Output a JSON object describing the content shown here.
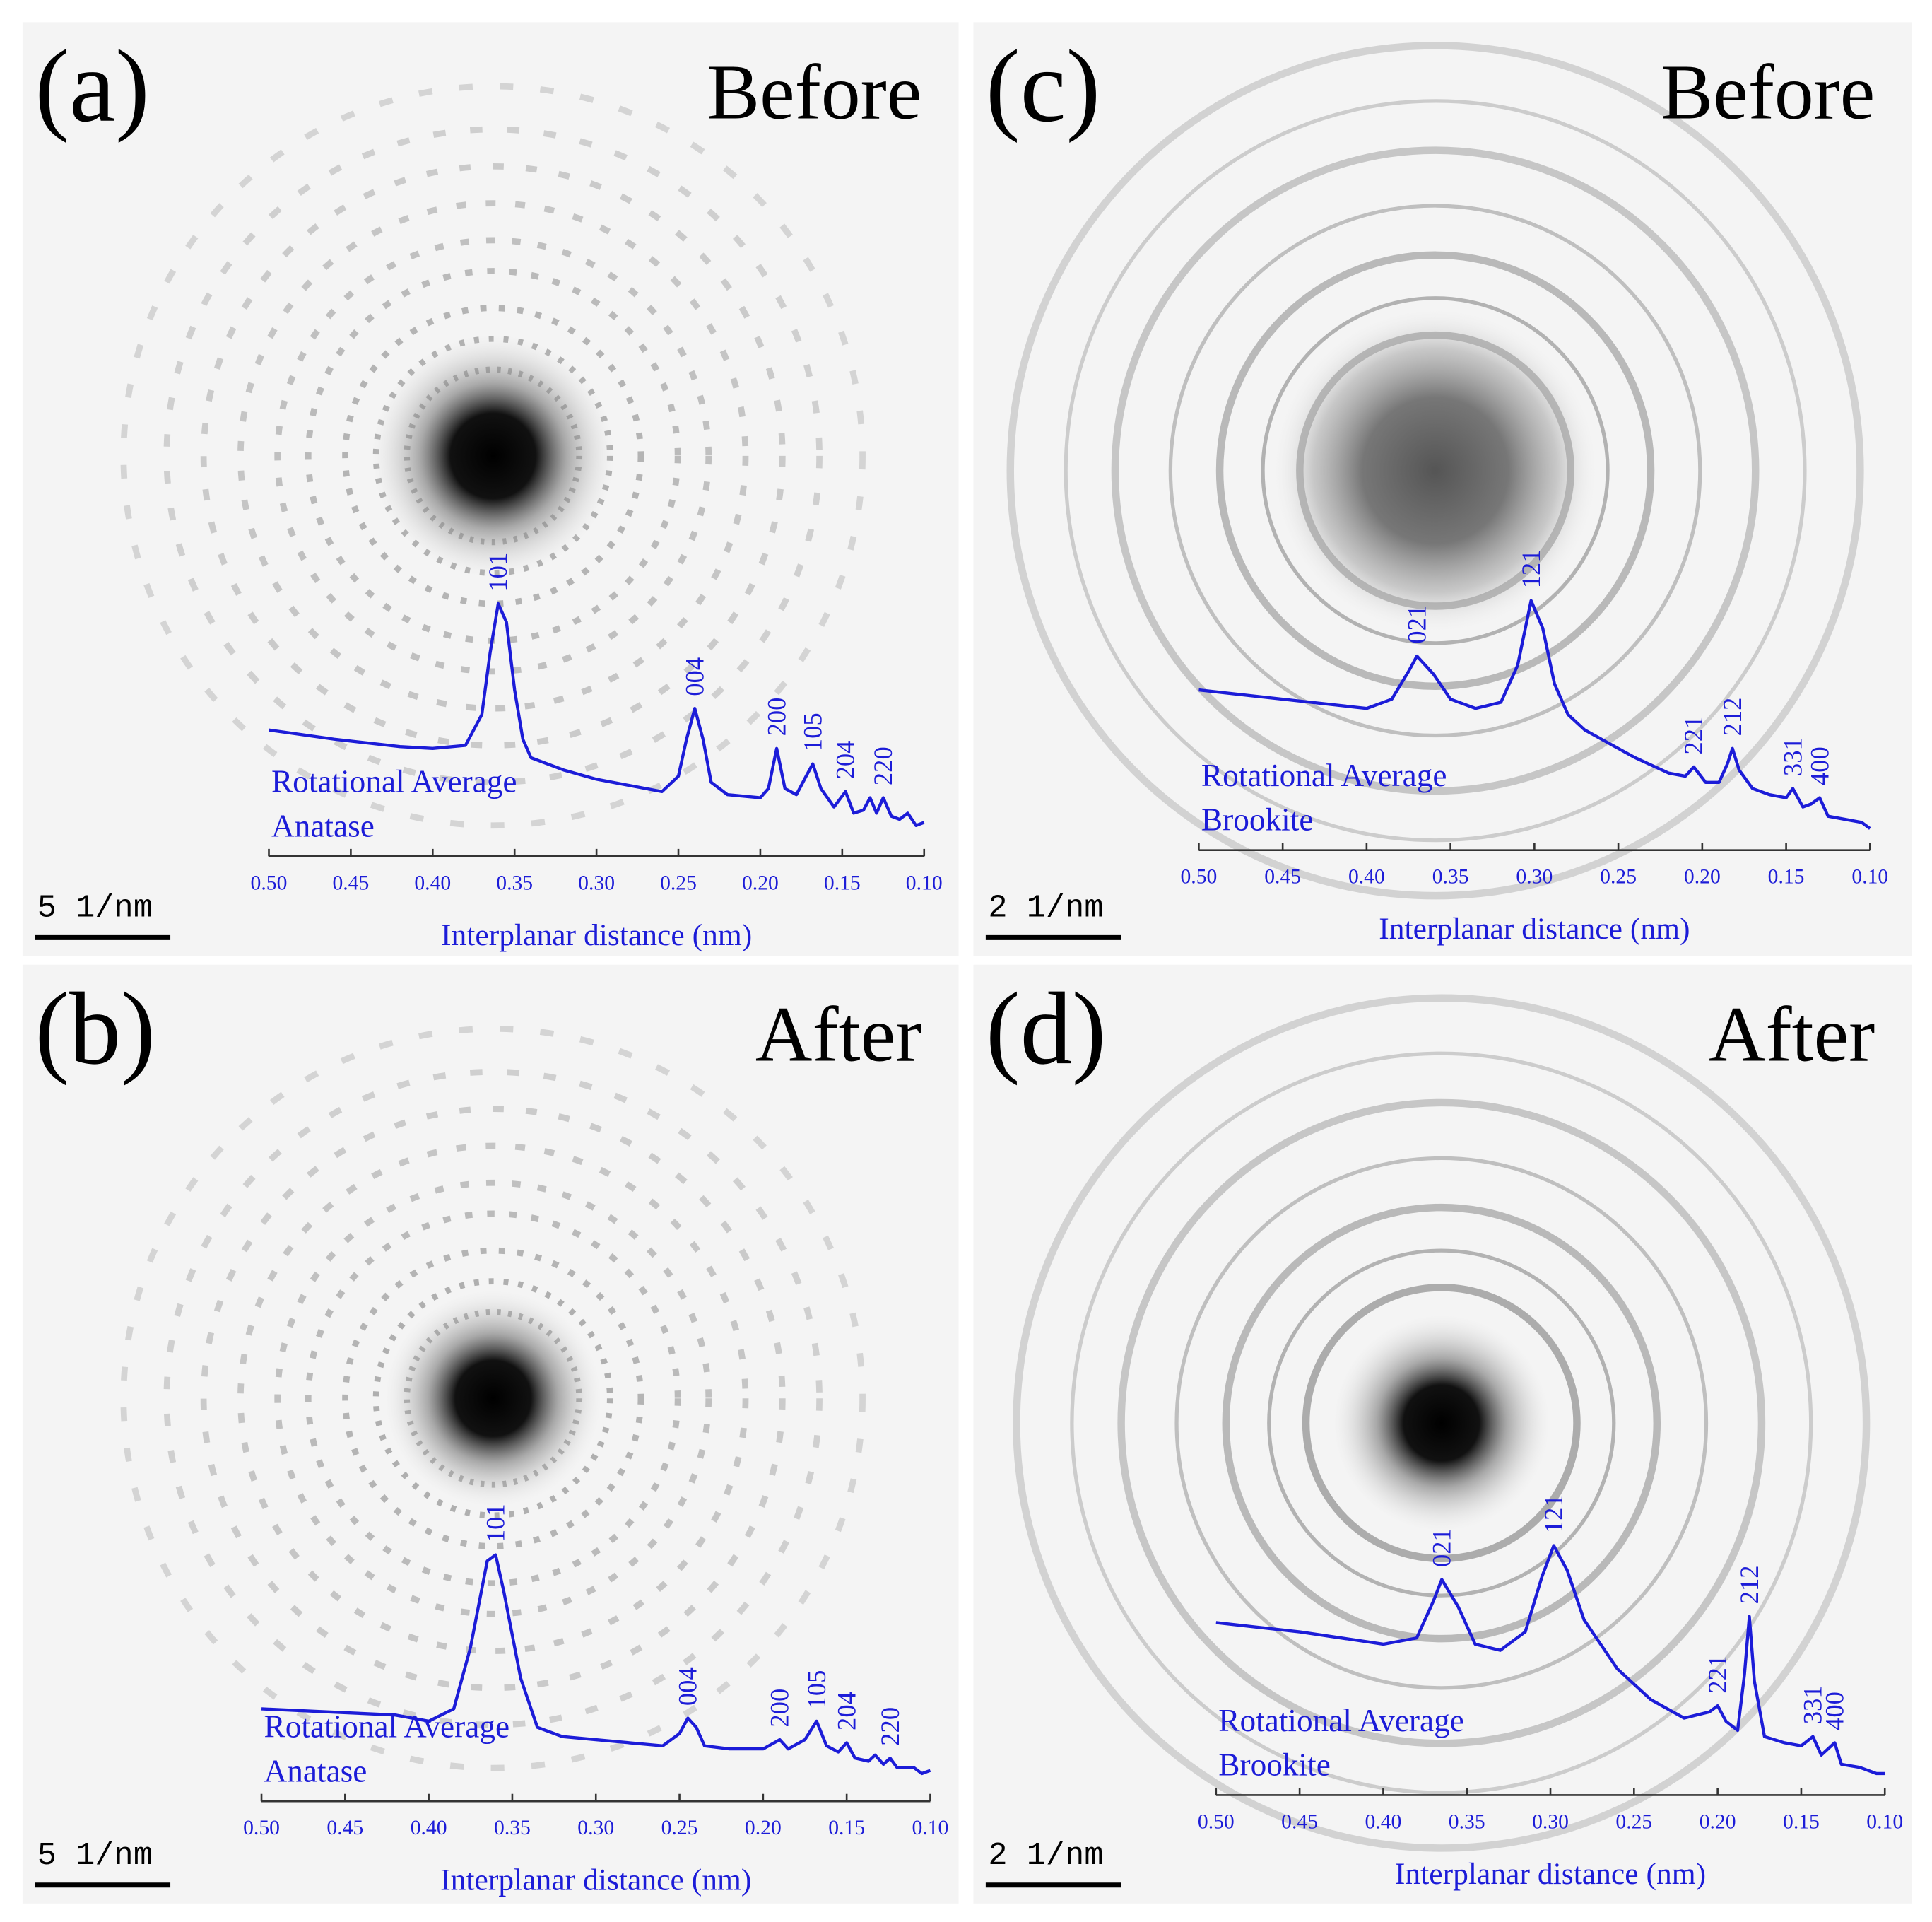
{
  "chart_data": [
    {
      "type": "line",
      "panel_label": "(a)",
      "title": "Before",
      "color": "#1c1cd8",
      "x": [
        0.5,
        0.46,
        0.42,
        0.4,
        0.38,
        0.37,
        0.365,
        0.36,
        0.355,
        0.35,
        0.345,
        0.34,
        0.32,
        0.3,
        0.28,
        0.26,
        0.25,
        0.245,
        0.24,
        0.235,
        0.23,
        0.22,
        0.2,
        0.195,
        0.19,
        0.185,
        0.178,
        0.172,
        0.168,
        0.163,
        0.155,
        0.148,
        0.143,
        0.137,
        0.133,
        0.129,
        0.125,
        0.12,
        0.115,
        0.11,
        0.105,
        0.1
      ],
      "values": [
        41,
        38,
        35.6,
        35,
        36,
        46,
        66,
        82,
        76,
        54,
        38,
        32,
        28,
        25,
        23,
        21,
        26,
        38,
        48,
        38,
        24,
        20,
        19,
        22,
        35,
        22,
        20,
        26,
        30,
        22,
        16,
        21,
        14,
        15,
        19,
        14,
        19,
        13,
        12,
        14,
        10,
        11
      ],
      "xlim": [
        0.5,
        0.1
      ],
      "ylim": [
        0,
        100
      ],
      "xticks": [
        {
          "value": 0.5,
          "label": "0.50"
        },
        0.45,
        {
          "value": 0.4,
          "label": "0.40"
        },
        0.35,
        {
          "value": 0.3,
          "label": "0.30"
        },
        0.25,
        {
          "value": 0.2,
          "label": "0.20"
        },
        0.15,
        {
          "value": 0.1,
          "label": "0.10"
        }
      ],
      "xlabel": "Interplanar distance (nm)",
      "curve_label": "Rotational Average",
      "phase": "Anatase",
      "peaks": [
        {
          "label": "101",
          "x": 0.36
        },
        {
          "label": "004",
          "x": 0.24
        },
        {
          "label": "200",
          "x": 0.19
        },
        {
          "label": "105",
          "x": 0.168
        },
        {
          "label": "204",
          "x": 0.148
        },
        {
          "label": "220",
          "x": 0.125
        }
      ],
      "scale_bar": "5 1/nm"
    },
    {
      "type": "line",
      "panel_label": "(b)",
      "title": "After",
      "color": "#1c1cd8",
      "x": [
        0.5,
        0.46,
        0.42,
        0.4,
        0.385,
        0.375,
        0.365,
        0.36,
        0.355,
        0.345,
        0.335,
        0.32,
        0.3,
        0.28,
        0.26,
        0.25,
        0.245,
        0.24,
        0.235,
        0.22,
        0.2,
        0.19,
        0.185,
        0.175,
        0.168,
        0.162,
        0.155,
        0.15,
        0.145,
        0.137,
        0.133,
        0.128,
        0.124,
        0.12,
        0.11,
        0.105,
        0.1
      ],
      "values": [
        30,
        29,
        28,
        26,
        30,
        50,
        78,
        80,
        68,
        40,
        24,
        21,
        20,
        19,
        18,
        22,
        27,
        24,
        18,
        17,
        17,
        20,
        17,
        20,
        26,
        18,
        16,
        19,
        14,
        13,
        15,
        12,
        14,
        11,
        11,
        9,
        10
      ],
      "xlim": [
        0.5,
        0.1
      ],
      "ylim": [
        0,
        100
      ],
      "xticks": [
        {
          "value": 0.5,
          "label": "0.50"
        },
        0.45,
        {
          "value": 0.4,
          "label": "0.40"
        },
        0.35,
        {
          "value": 0.3,
          "label": "0.30"
        },
        0.25,
        {
          "value": 0.2,
          "label": "0.20"
        },
        0.15,
        {
          "value": 0.1,
          "label": "0.10"
        }
      ],
      "xlabel": "Interplanar distance (nm)",
      "curve_label": "Rotational Average",
      "phase": "Anatase",
      "peaks": [
        {
          "label": "101",
          "x": 0.36
        },
        {
          "label": "004",
          "x": 0.245
        },
        {
          "label": "200",
          "x": 0.19
        },
        {
          "label": "105",
          "x": 0.168
        },
        {
          "label": "204",
          "x": 0.15
        },
        {
          "label": "220",
          "x": 0.124
        }
      ],
      "scale_bar": "5 1/nm"
    },
    {
      "type": "line",
      "panel_label": "(c)",
      "title": "Before",
      "color": "#1c1cd8",
      "x": [
        0.5,
        0.45,
        0.4,
        0.385,
        0.375,
        0.37,
        0.36,
        0.35,
        0.335,
        0.32,
        0.31,
        0.302,
        0.295,
        0.288,
        0.28,
        0.27,
        0.26,
        0.24,
        0.22,
        0.21,
        0.205,
        0.198,
        0.19,
        0.185,
        0.182,
        0.178,
        0.17,
        0.16,
        0.15,
        0.146,
        0.14,
        0.135,
        0.13,
        0.125,
        0.115,
        0.105,
        0.1
      ],
      "values": [
        52,
        49,
        46,
        49,
        58,
        63,
        57,
        49,
        46,
        48,
        60,
        81,
        72,
        54,
        44,
        39,
        36,
        30,
        25,
        24,
        27,
        22,
        22,
        28,
        33,
        26,
        20,
        18,
        17,
        20,
        14,
        15,
        17,
        11,
        10,
        9,
        7
      ],
      "xlim": [
        0.5,
        0.1
      ],
      "ylim": [
        0,
        100
      ],
      "xticks": [
        {
          "value": 0.5,
          "label": "0.50"
        },
        0.45,
        {
          "value": 0.4,
          "label": "0.40"
        },
        0.35,
        {
          "value": 0.3,
          "label": "0.30"
        },
        0.25,
        {
          "value": 0.2,
          "label": "0.20"
        },
        0.15,
        {
          "value": 0.1,
          "label": "0.10"
        }
      ],
      "xlabel": "Interplanar distance (nm)",
      "curve_label": "Rotational Average",
      "phase": "Brookite",
      "peaks": [
        {
          "label": "021",
          "x": 0.37
        },
        {
          "label": "121",
          "x": 0.302
        },
        {
          "label": "221",
          "x": 0.205
        },
        {
          "label": "212",
          "x": 0.182
        },
        {
          "label": "331",
          "x": 0.146
        },
        {
          "label": "400",
          "x": 0.13
        }
      ],
      "scale_bar": "2 1/nm"
    },
    {
      "type": "line",
      "panel_label": "(d)",
      "title": "After",
      "color": "#1c1cd8",
      "x": [
        0.5,
        0.45,
        0.4,
        0.38,
        0.37,
        0.365,
        0.355,
        0.345,
        0.33,
        0.315,
        0.305,
        0.298,
        0.29,
        0.28,
        0.27,
        0.26,
        0.24,
        0.22,
        0.205,
        0.2,
        0.195,
        0.188,
        0.184,
        0.181,
        0.178,
        0.172,
        0.16,
        0.15,
        0.143,
        0.138,
        0.13,
        0.126,
        0.115,
        0.105,
        0.1
      ],
      "values": [
        56,
        53,
        49,
        51,
        63,
        70,
        61,
        49,
        47,
        53,
        71,
        81,
        73,
        57,
        49,
        41,
        31,
        25,
        27,
        29,
        24,
        21,
        39,
        58,
        37,
        19,
        17,
        16,
        19,
        13,
        17,
        10,
        9,
        7,
        7
      ],
      "xlim": [
        0.5,
        0.1
      ],
      "ylim": [
        0,
        100
      ],
      "xticks": [
        {
          "value": 0.5,
          "label": "0.50"
        },
        0.45,
        {
          "value": 0.4,
          "label": "0.40"
        },
        0.35,
        {
          "value": 0.3,
          "label": "0.30"
        },
        0.25,
        {
          "value": 0.2,
          "label": "0.20"
        },
        0.15,
        {
          "value": 0.1,
          "label": "0.10"
        }
      ],
      "xlabel": "Interplanar distance (nm)",
      "curve_label": "Rotational Average",
      "phase": "Brookite",
      "peaks": [
        {
          "label": "021",
          "x": 0.365
        },
        {
          "label": "121",
          "x": 0.298
        },
        {
          "label": "221",
          "x": 0.2
        },
        {
          "label": "212",
          "x": 0.181
        },
        {
          "label": "331",
          "x": 0.143
        },
        {
          "label": "400",
          "x": 0.13
        }
      ],
      "scale_bar": "2 1/nm"
    }
  ]
}
